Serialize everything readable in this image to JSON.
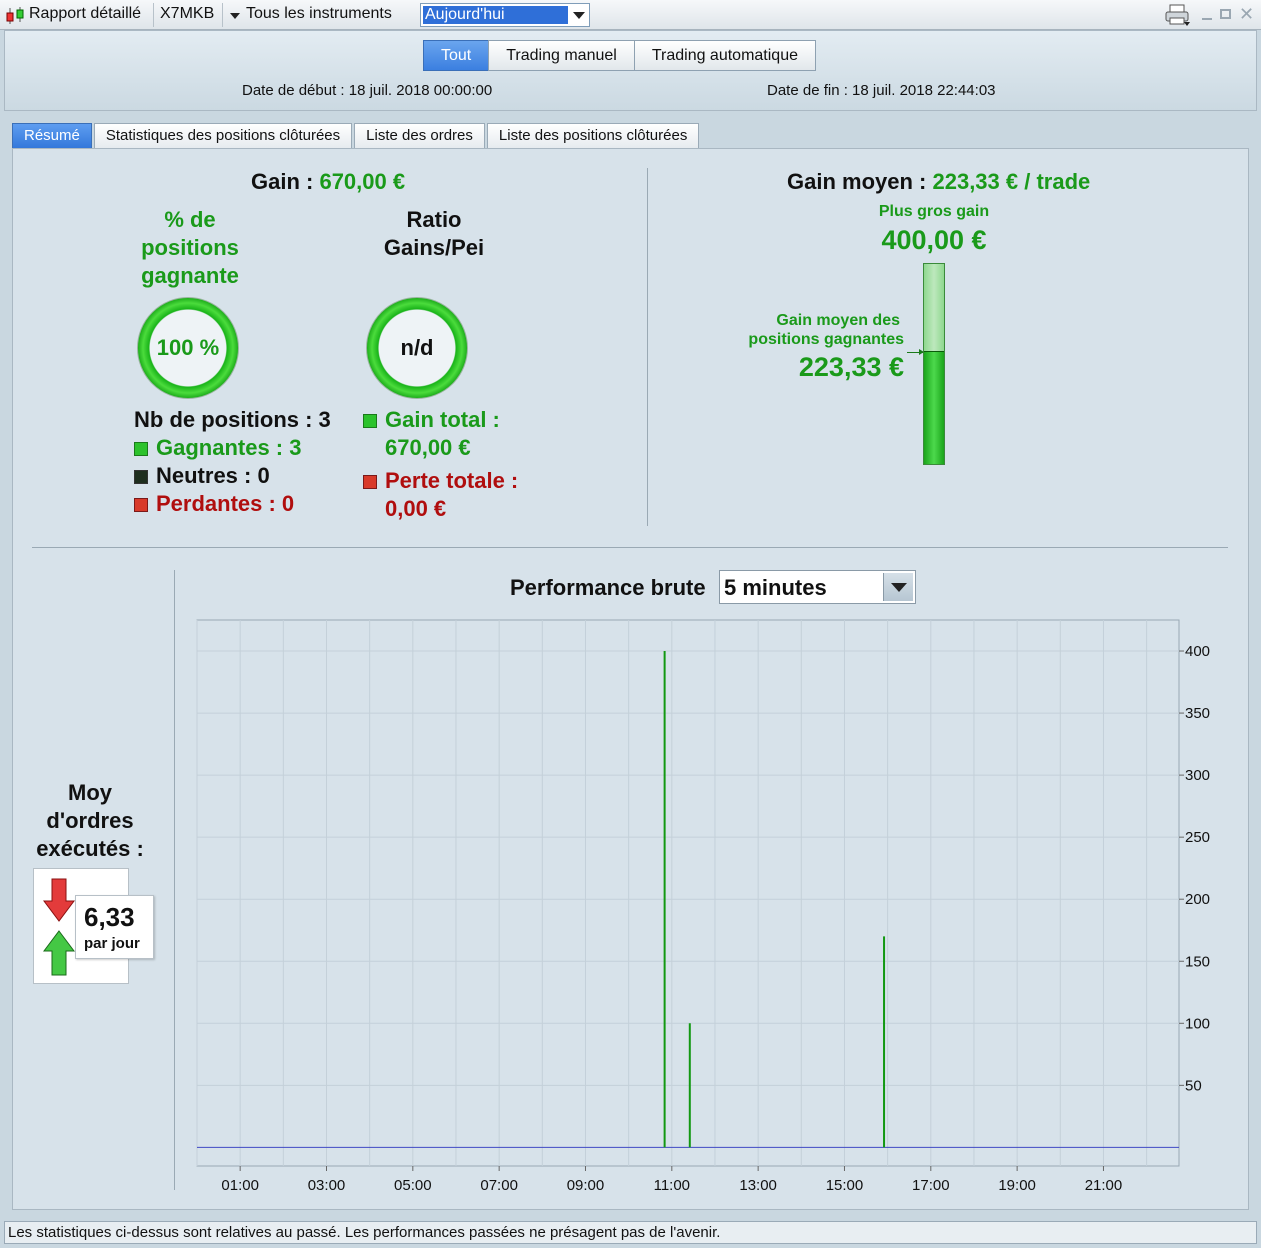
{
  "titlebar": {
    "report_label": "Rapport détaillé",
    "account": "X7MKB",
    "instruments": "Tous les instruments",
    "period": "Aujourd'hui",
    "icons": [
      "candlestick-icon",
      "printer-icon",
      "minimize-icon",
      "maximize-icon",
      "close-icon"
    ]
  },
  "header": {
    "mode_tabs": [
      "Tout",
      "Trading manuel",
      "Trading automatique"
    ],
    "start_date": "Date de début : 18 juil. 2018 00:00:00",
    "end_date": "Date de fin : 18 juil. 2018 22:44:03"
  },
  "tabs": [
    "Résumé",
    "Statistiques des positions clôturées",
    "Liste des ordres",
    "Liste des positions clôturées"
  ],
  "summary": {
    "gain_label": "Gain : ",
    "gain_value": "670,00 €",
    "win_pct_label_1": "% de",
    "win_pct_label_2": "positions",
    "win_pct_label_3": "gagnante",
    "win_pct_value": "100 %",
    "ratio_label_1": "Ratio",
    "ratio_label_2": "Gains/Pei",
    "ratio_value": "n/d",
    "nb_positions": "Nb de positions : 3",
    "gagnantes": "Gagnantes : 3",
    "neutres": "Neutres : 0",
    "perdantes": "Perdantes : 0",
    "gain_total_label": "Gain total :",
    "gain_total_value": "670,00 €",
    "perte_totale_label": "Perte totale :",
    "perte_totale_value": "0,00 €",
    "gain_moyen_label": "Gain moyen : ",
    "gain_moyen_value": "223,33 € / trade",
    "plus_gros_gain_label": "Plus gros gain",
    "plus_gros_gain_value": "400,00 €",
    "gain_moyen_gagnantes_label_1": "Gain moyen des",
    "gain_moyen_gagnantes_label_2": "positions gagnantes",
    "gain_moyen_gagnantes_value": "223,33 €",
    "avg_fill_fraction": 0.558,
    "orders_label_1": "Moy",
    "orders_label_2": "d'ordres",
    "orders_label_3": "exécutés :",
    "orders_value": "6,33",
    "orders_unit": "par jour",
    "colors": {
      "green": "#1a9a1a",
      "red": "#b00e0e",
      "accent": "#3b7fe0"
    }
  },
  "performance": {
    "title": "Performance brute",
    "interval": "5 minutes"
  },
  "chart_data": {
    "type": "bar",
    "x_unit": "time of day (hours)",
    "x_ticks": [
      "01:00",
      "03:00",
      "05:00",
      "07:00",
      "09:00",
      "11:00",
      "13:00",
      "15:00",
      "17:00",
      "19:00",
      "21:00"
    ],
    "x_range_hours": [
      0,
      22.75
    ],
    "y_ticks": [
      "400",
      "350",
      "300",
      "250",
      "200",
      "150",
      "100",
      "50"
    ],
    "ylim": [
      -15,
      425
    ],
    "y_axis_side": "right",
    "grid": true,
    "bars": [
      {
        "time": "10:50",
        "value": 400
      },
      {
        "time": "11:25",
        "value": 100
      },
      {
        "time": "15:55",
        "value": 170
      }
    ],
    "baseline": 0
  },
  "footer": {
    "disclaimer": "Les statistiques ci-dessus sont relatives au passé. Les performances passées ne présagent pas de l'avenir."
  }
}
